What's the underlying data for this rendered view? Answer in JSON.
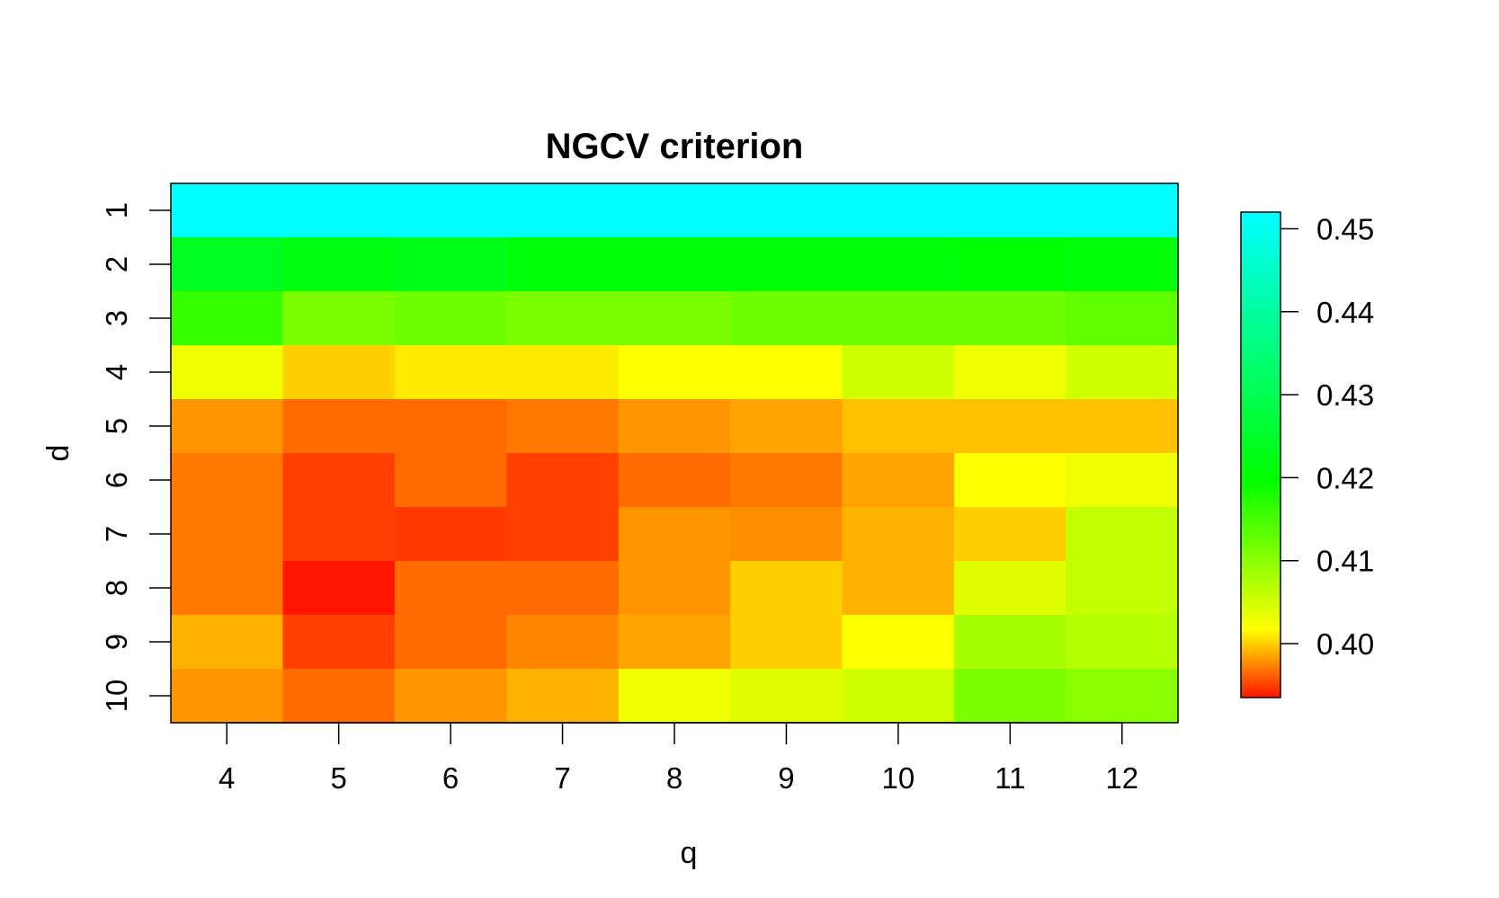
{
  "chart_data": {
    "type": "heatmap",
    "title": "NGCV criterion",
    "xlabel": "q",
    "ylabel": "d",
    "x": [
      "4",
      "5",
      "6",
      "7",
      "8",
      "9",
      "10",
      "11",
      "12"
    ],
    "y": [
      "1",
      "2",
      "3",
      "4",
      "5",
      "6",
      "7",
      "8",
      "9",
      "10"
    ],
    "values": [
      [
        0.452,
        0.452,
        0.452,
        0.452,
        0.452,
        0.452,
        0.452,
        0.452,
        0.452
      ],
      [
        0.424,
        0.422,
        0.423,
        0.421,
        0.421,
        0.421,
        0.421,
        0.42,
        0.421
      ],
      [
        0.416,
        0.411,
        0.412,
        0.411,
        0.411,
        0.412,
        0.412,
        0.412,
        0.413
      ],
      [
        0.403,
        0.4,
        0.401,
        0.401,
        0.402,
        0.402,
        0.405,
        0.403,
        0.405
      ],
      [
        0.398,
        0.3965,
        0.3965,
        0.397,
        0.398,
        0.3985,
        0.3995,
        0.3995,
        0.3995
      ],
      [
        0.397,
        0.395,
        0.3965,
        0.395,
        0.3965,
        0.397,
        0.3985,
        0.402,
        0.403
      ],
      [
        0.397,
        0.395,
        0.3948,
        0.395,
        0.398,
        0.3977,
        0.399,
        0.4,
        0.406
      ],
      [
        0.397,
        0.3935,
        0.3965,
        0.3965,
        0.398,
        0.4,
        0.399,
        0.404,
        0.406
      ],
      [
        0.399,
        0.395,
        0.3965,
        0.3975,
        0.3985,
        0.4,
        0.402,
        0.408,
        0.407
      ],
      [
        0.398,
        0.3965,
        0.398,
        0.399,
        0.403,
        0.404,
        0.405,
        0.411,
        0.41
      ]
    ],
    "colorbar": {
      "ticks": [
        "0.40",
        "0.41",
        "0.42",
        "0.43",
        "0.44",
        "0.45"
      ],
      "range": [
        0.3935,
        0.452
      ]
    },
    "colormap": "R topo-like (red → yellow → green → cyan)",
    "colors": {
      "low": "#ff1500",
      "mid_low": "#ffff00",
      "mid": "#00ff00",
      "high": "#00ffff",
      "axis": "#000000",
      "background": "#ffffff"
    }
  }
}
